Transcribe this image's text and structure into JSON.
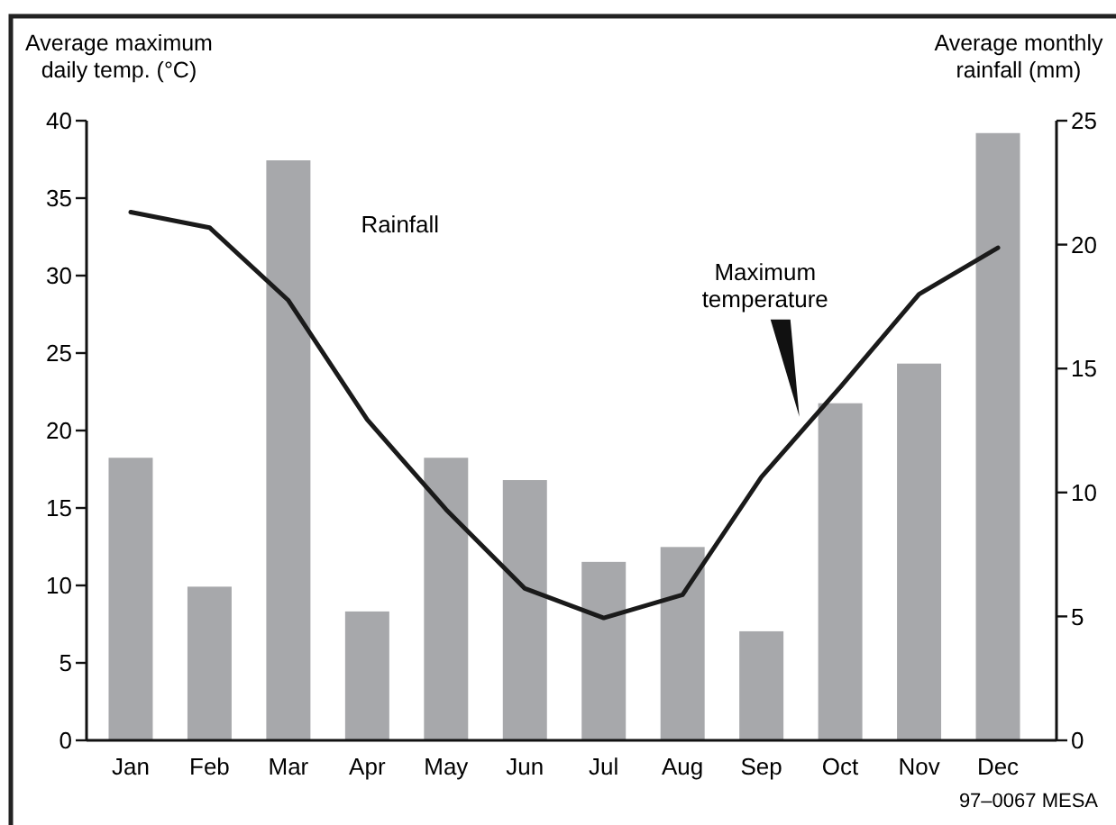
{
  "chart_data": {
    "type": "bar",
    "ylabel": "Average maximum daily temp. (°C)",
    "y2label": "Average monthly rainfall (mm)",
    "categories": [
      "Jan",
      "Feb",
      "Mar",
      "Apr",
      "May",
      "Jun",
      "Jul",
      "Aug",
      "Sep",
      "Oct",
      "Nov",
      "Dec"
    ],
    "series": [
      {
        "name": "Rainfall",
        "axis": "y2",
        "color": "#a7a8ab",
        "values": [
          11.4,
          6.2,
          23.4,
          5.2,
          11.4,
          10.5,
          7.2,
          7.8,
          4.4,
          13.6,
          15.2,
          24.5
        ]
      },
      {
        "name": "Maximum temperature",
        "type": "line",
        "axis": "y",
        "color": "#1a1a1a",
        "values": [
          34.1,
          33.1,
          28.4,
          20.7,
          14.9,
          9.8,
          7.9,
          9.4,
          17.0,
          22.8,
          28.8,
          31.8
        ]
      }
    ],
    "ylim": [
      0,
      40
    ],
    "yticks": [
      0,
      5,
      10,
      15,
      20,
      25,
      30,
      35,
      40
    ],
    "y2lim": [
      0,
      25
    ],
    "y2ticks": [
      0,
      5,
      10,
      15,
      20,
      25
    ],
    "grid": false,
    "annotations": [
      "97–0067 MESA"
    ]
  }
}
